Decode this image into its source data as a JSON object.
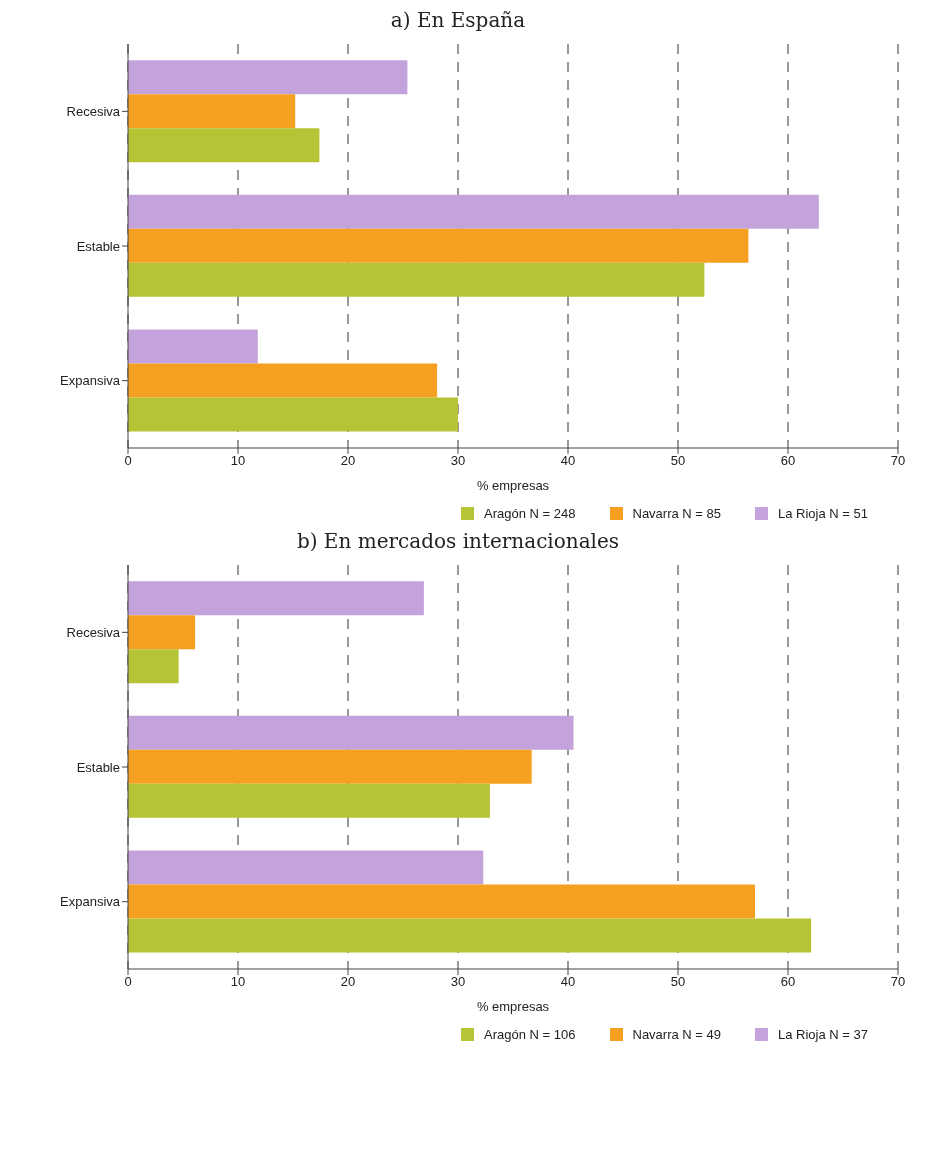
{
  "chart_data": [
    {
      "type": "bar",
      "orientation": "horizontal",
      "title": "a) En España",
      "xlabel": "% empresas",
      "categories": [
        "Recesiva",
        "Estable",
        "Expansiva"
      ],
      "xlim": [
        0,
        70
      ],
      "xticks": [
        0,
        10,
        20,
        30,
        40,
        50,
        60,
        70
      ],
      "grid": "x",
      "legend": "bottom",
      "series": [
        {
          "name": "Aragón N = 248",
          "color": "#b5c334",
          "values": [
            17.4,
            52.4,
            30.0
          ]
        },
        {
          "name": "Navarra N = 85",
          "color": "#f5a020",
          "values": [
            15.2,
            56.4,
            28.1
          ]
        },
        {
          "name": "La Rioja N = 51",
          "color": "#c4a3dc",
          "values": [
            25.4,
            62.8,
            11.8
          ]
        }
      ]
    },
    {
      "type": "bar",
      "orientation": "horizontal",
      "title": "b) En mercados internacionales",
      "xlabel": "% empresas",
      "categories": [
        "Recesiva",
        "Estable",
        "Expansiva"
      ],
      "xlim": [
        0,
        70
      ],
      "xticks": [
        0,
        10,
        20,
        30,
        40,
        50,
        60,
        70
      ],
      "grid": "x",
      "legend": "bottom",
      "series": [
        {
          "name": "Aragón N = 106",
          "color": "#b5c334",
          "values": [
            4.6,
            32.9,
            62.1
          ]
        },
        {
          "name": "Navarra N = 49",
          "color": "#f5a020",
          "values": [
            6.1,
            36.7,
            57.0
          ]
        },
        {
          "name": "La Rioja N = 37",
          "color": "#c4a3dc",
          "values": [
            26.9,
            40.5,
            32.3
          ]
        }
      ]
    }
  ]
}
